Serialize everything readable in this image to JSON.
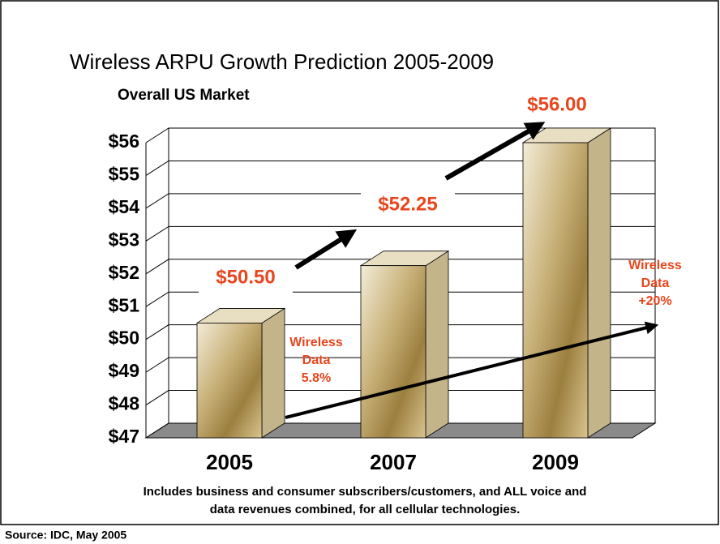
{
  "chart_data": {
    "type": "bar3d",
    "title": "Wireless ARPU Growth Prediction 2005-2009",
    "subtitle": "Overall US Market",
    "categories": [
      "2005",
      "2007",
      "2009"
    ],
    "values": [
      50.5,
      52.25,
      56
    ],
    "value_labels": [
      "$50.50",
      "$52.25",
      "$56.00"
    ],
    "ylim": [
      47,
      56
    ],
    "yticks": [
      {
        "value": 47,
        "label": "$47"
      },
      {
        "value": 48,
        "label": "$48"
      },
      {
        "value": 49,
        "label": "$49"
      },
      {
        "value": 50,
        "label": "$50"
      },
      {
        "value": 51,
        "label": "$51"
      },
      {
        "value": 52,
        "label": "$52"
      },
      {
        "value": 53,
        "label": "$53"
      },
      {
        "value": 54,
        "label": "$54"
      },
      {
        "value": 55,
        "label": "$55"
      },
      {
        "value": 56,
        "label": "$56"
      }
    ],
    "grid": true,
    "annotations": [
      {
        "lines": [
          "Wireless",
          "Data",
          "5.8%"
        ]
      },
      {
        "lines": [
          "Wireless",
          "Data",
          "+20%"
        ]
      }
    ],
    "footnote": [
      "Includes business and consumer subscribers/customers, and ALL voice and",
      "data revenues combined, for all cellular technologies."
    ],
    "source": "Source: IDC, May 2005"
  }
}
